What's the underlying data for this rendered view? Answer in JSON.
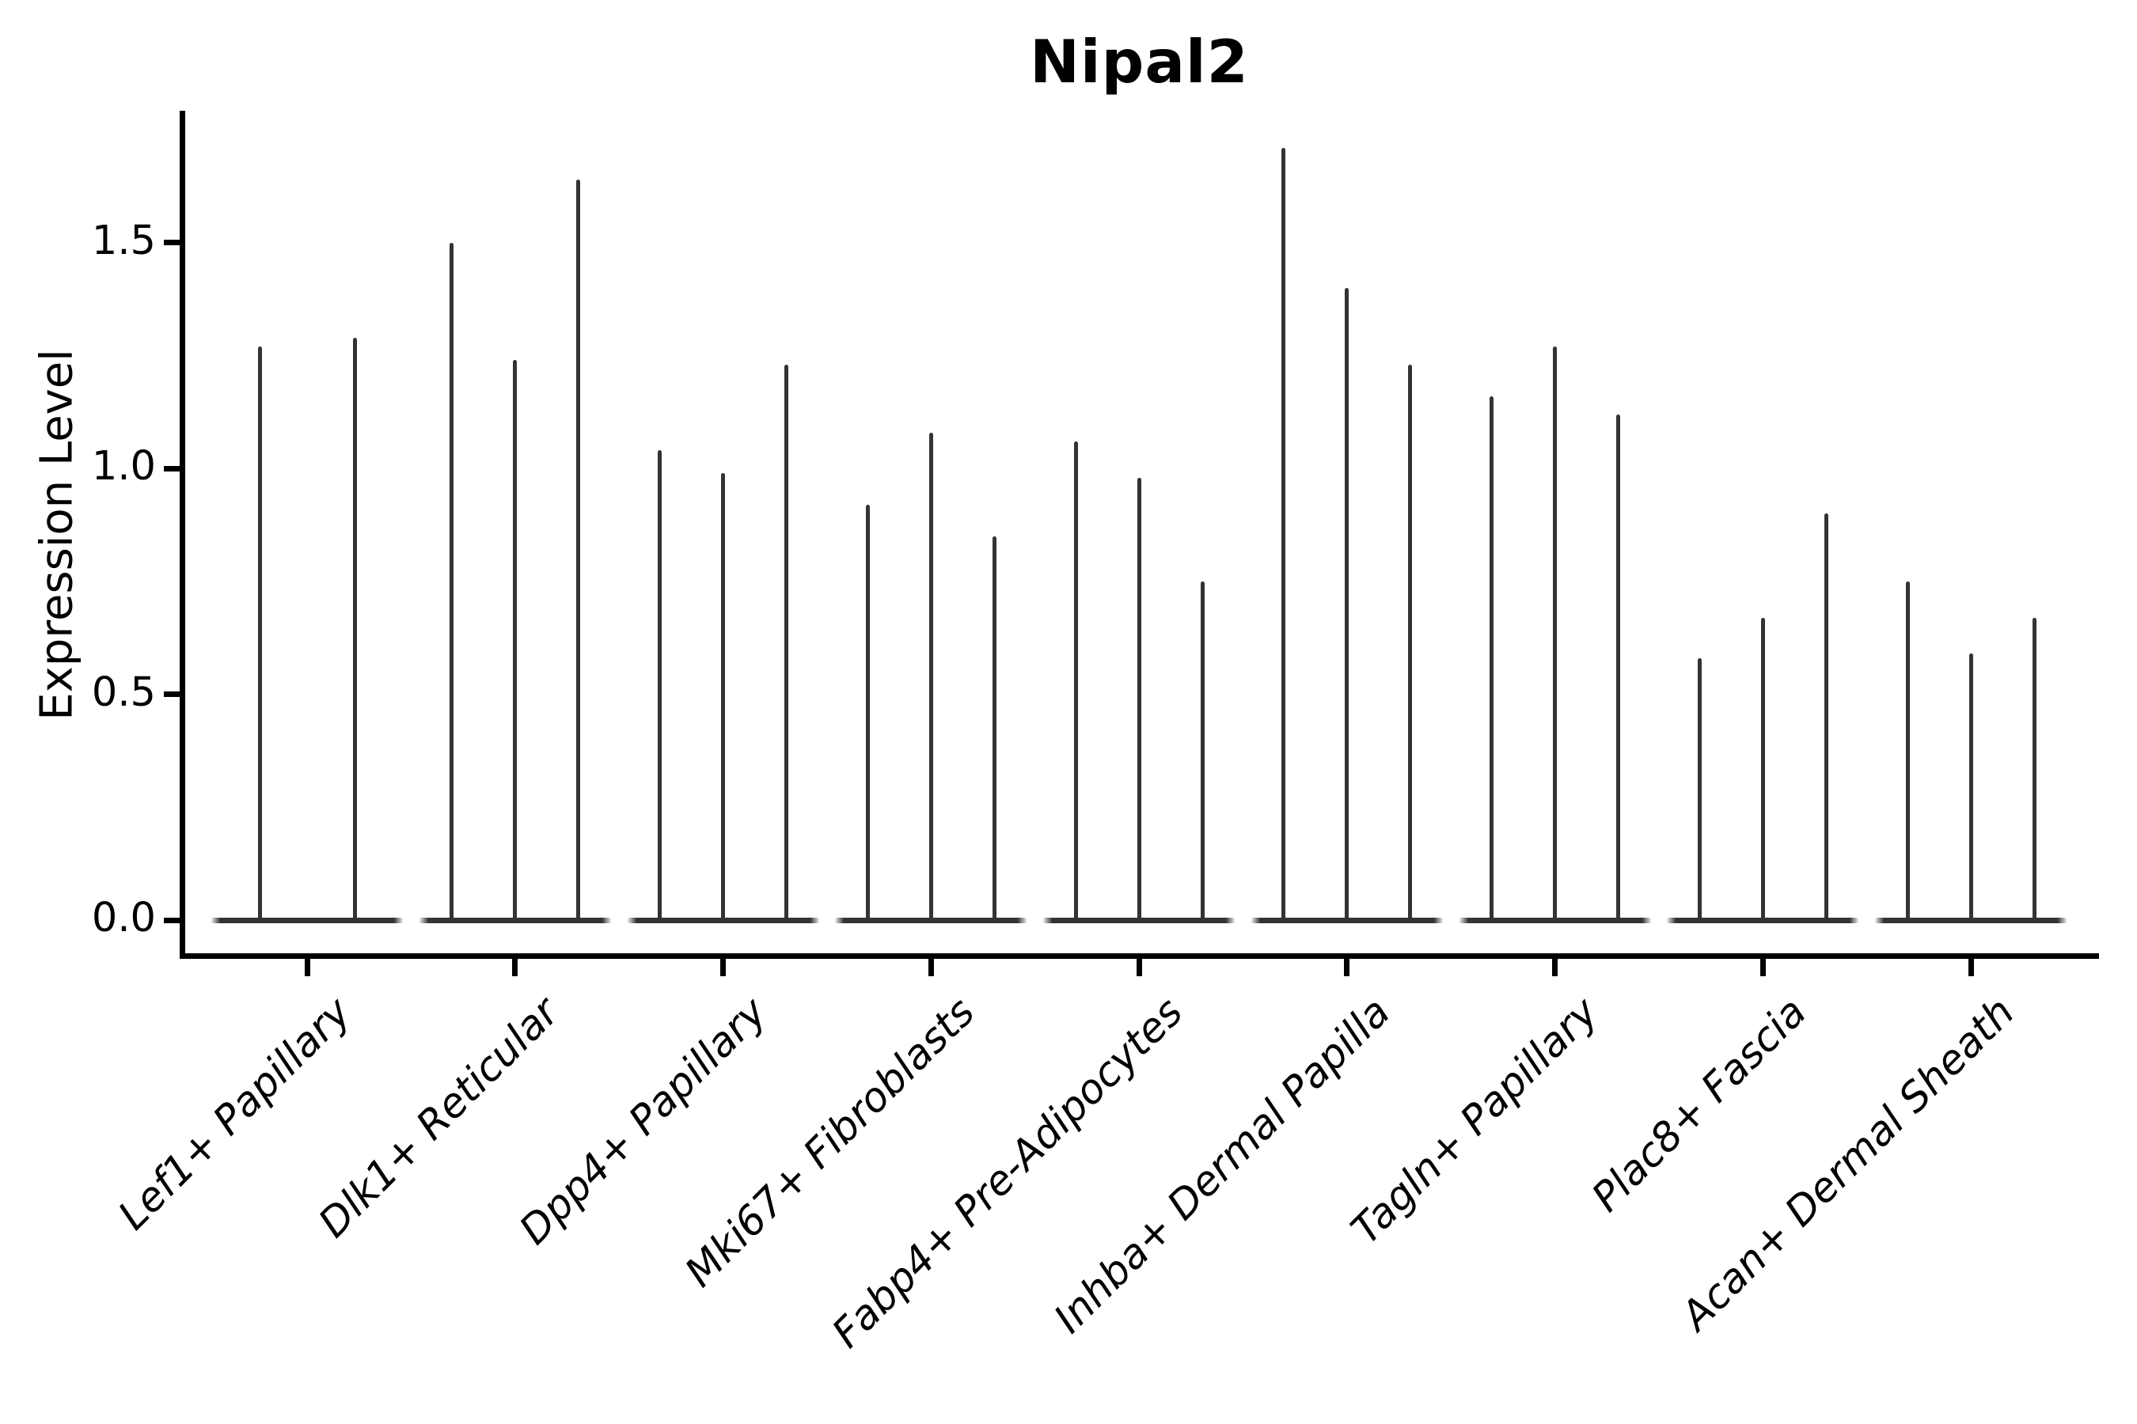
{
  "chart_data": {
    "type": "violin",
    "title": "Nipal2",
    "ylabel": "Expression Level",
    "xlabel": "",
    "grid": false,
    "legend": "none",
    "ylim": [
      -0.08,
      1.79
    ],
    "y_ticks": [
      {
        "value": 0.0,
        "label": "0.0"
      },
      {
        "value": 0.5,
        "label": "0.5"
      },
      {
        "value": 1.0,
        "label": "1.0"
      },
      {
        "value": 1.5,
        "label": "1.5"
      }
    ],
    "categories": [
      "Lef1+ Papillary",
      "Dlk1+ Reticular",
      "Dpp4+ Papillary",
      "Mki67+ Fibroblasts",
      "Fabp4+ Pre-Adipocytes",
      "Inhba+ Dermal Papilla",
      "Tagln+ Papillary",
      "Plac8+ Fascia",
      "Acan+ Dermal Sheath"
    ],
    "series": [
      {
        "category": "Lef1+ Papillary",
        "spike_heights": [
          1.27,
          1.29
        ]
      },
      {
        "category": "Dlk1+ Reticular",
        "spike_heights": [
          1.5,
          1.24,
          1.64
        ]
      },
      {
        "category": "Dpp4+ Papillary",
        "spike_heights": [
          1.04,
          0.99,
          1.23
        ]
      },
      {
        "category": "Mki67+ Fibroblasts",
        "spike_heights": [
          0.92,
          1.08,
          0.85
        ]
      },
      {
        "category": "Fabp4+ Pre-Adipocytes",
        "spike_heights": [
          1.06,
          0.98,
          0.75
        ]
      },
      {
        "category": "Inhba+ Dermal Papilla",
        "spike_heights": [
          1.71,
          1.4,
          1.23
        ]
      },
      {
        "category": "Tagln+ Papillary",
        "spike_heights": [
          1.16,
          1.27,
          1.12
        ]
      },
      {
        "category": "Plac8+ Fascia",
        "spike_heights": [
          0.58,
          0.67,
          0.9
        ]
      },
      {
        "category": "Acan+ Dermal Sheath",
        "spike_heights": [
          0.75,
          0.59,
          0.67
        ]
      }
    ],
    "style_notes": {
      "violin_shape": "flat wide base at 0 with thin vertical spike to max",
      "x_label_rotation_deg": 45,
      "x_label_italic": true
    },
    "colors": {
      "violin": "#333333",
      "axis": "#000000",
      "text": "#000000",
      "background": "#ffffff"
    }
  }
}
